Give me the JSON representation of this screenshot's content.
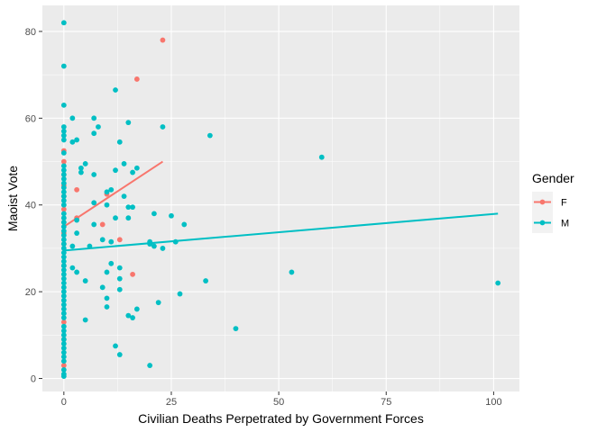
{
  "chart_data": {
    "type": "scatter",
    "title": "",
    "xlabel": "Civilian Deaths Perpetrated by Government Forces",
    "ylabel": "Maoist Vote",
    "xlim": [
      -5,
      106
    ],
    "ylim": [
      -3,
      86
    ],
    "x_ticks": [
      0,
      25,
      50,
      75,
      100
    ],
    "y_ticks": [
      0,
      20,
      40,
      60,
      80
    ],
    "x_tick_labels": [
      "0",
      "25",
      "50",
      "75",
      "100"
    ],
    "y_tick_labels": [
      "0",
      "20",
      "40",
      "60",
      "80"
    ],
    "grid": true,
    "legend": {
      "title": "Gender",
      "position": "right"
    },
    "series": [
      {
        "name": "F",
        "color": "#F8766D",
        "points": [
          [
            0,
            52.5
          ],
          [
            0,
            50
          ],
          [
            0,
            47
          ],
          [
            0,
            44.5
          ],
          [
            0,
            42
          ],
          [
            0,
            39
          ],
          [
            0,
            36
          ],
          [
            0,
            33.5
          ],
          [
            0,
            31
          ],
          [
            0,
            26
          ],
          [
            0,
            13
          ],
          [
            0,
            9
          ],
          [
            0,
            3
          ],
          [
            3,
            43.5
          ],
          [
            3,
            37
          ],
          [
            9,
            35.5
          ],
          [
            10,
            42.5
          ],
          [
            13,
            32
          ],
          [
            16,
            24
          ],
          [
            17,
            69
          ],
          [
            23,
            78
          ]
        ],
        "trend": [
          [
            0,
            35
          ],
          [
            23,
            50
          ]
        ]
      },
      {
        "name": "M",
        "color": "#00BFC4",
        "points": [
          [
            0,
            82
          ],
          [
            0,
            72
          ],
          [
            0,
            63
          ],
          [
            0,
            58
          ],
          [
            0,
            57
          ],
          [
            0,
            56
          ],
          [
            0,
            55
          ],
          [
            0,
            52
          ],
          [
            0,
            49
          ],
          [
            0,
            48
          ],
          [
            0,
            47
          ],
          [
            0,
            46
          ],
          [
            0,
            45
          ],
          [
            0,
            44
          ],
          [
            0,
            43
          ],
          [
            0,
            42
          ],
          [
            0,
            41
          ],
          [
            0,
            40
          ],
          [
            0,
            38
          ],
          [
            0,
            37
          ],
          [
            0,
            36
          ],
          [
            0,
            35
          ],
          [
            0,
            34
          ],
          [
            0,
            33
          ],
          [
            0,
            32
          ],
          [
            0,
            31
          ],
          [
            0,
            30
          ],
          [
            0,
            29
          ],
          [
            0,
            28
          ],
          [
            0,
            27
          ],
          [
            0,
            26
          ],
          [
            0,
            25
          ],
          [
            0,
            24
          ],
          [
            0,
            23
          ],
          [
            0,
            22
          ],
          [
            0,
            21
          ],
          [
            0,
            20
          ],
          [
            0,
            19
          ],
          [
            0,
            18
          ],
          [
            0,
            17
          ],
          [
            0,
            16
          ],
          [
            0,
            15
          ],
          [
            0,
            14
          ],
          [
            0,
            12
          ],
          [
            0,
            11
          ],
          [
            0,
            10
          ],
          [
            0,
            9
          ],
          [
            0,
            8
          ],
          [
            0,
            7
          ],
          [
            0,
            6
          ],
          [
            0,
            5
          ],
          [
            0,
            4
          ],
          [
            0,
            2
          ],
          [
            0,
            1
          ],
          [
            0,
            0.5
          ],
          [
            2,
            60
          ],
          [
            2,
            54.5
          ],
          [
            2,
            30.5
          ],
          [
            2,
            25.5
          ],
          [
            3,
            55
          ],
          [
            3,
            36.5
          ],
          [
            3,
            33.5
          ],
          [
            3,
            24.5
          ],
          [
            4,
            48.5
          ],
          [
            4,
            47.5
          ],
          [
            5,
            49.5
          ],
          [
            5,
            22.5
          ],
          [
            5,
            13.5
          ],
          [
            6,
            30.5
          ],
          [
            7,
            60
          ],
          [
            7,
            56.5
          ],
          [
            7,
            47
          ],
          [
            7,
            40.5
          ],
          [
            7,
            35.5
          ],
          [
            8,
            58
          ],
          [
            9,
            32
          ],
          [
            9,
            21
          ],
          [
            10,
            43
          ],
          [
            10,
            40
          ],
          [
            10,
            24.5
          ],
          [
            10,
            18.5
          ],
          [
            10,
            16.5
          ],
          [
            11,
            43.5
          ],
          [
            11,
            31.5
          ],
          [
            11,
            26.5
          ],
          [
            12,
            66.5
          ],
          [
            12,
            48
          ],
          [
            12,
            37
          ],
          [
            12,
            7.5
          ],
          [
            13,
            54.5
          ],
          [
            13,
            25.5
          ],
          [
            13,
            23
          ],
          [
            13,
            20.5
          ],
          [
            13,
            5.5
          ],
          [
            14,
            49.5
          ],
          [
            14,
            42
          ],
          [
            15,
            59
          ],
          [
            15,
            39.5
          ],
          [
            15,
            37
          ],
          [
            15,
            14.5
          ],
          [
            16,
            14
          ],
          [
            16,
            47.5
          ],
          [
            16,
            39.5
          ],
          [
            17,
            16
          ],
          [
            17,
            48.5
          ],
          [
            20,
            31.5
          ],
          [
            20,
            31
          ],
          [
            20,
            3
          ],
          [
            21,
            38
          ],
          [
            21,
            30.5
          ],
          [
            22,
            17.5
          ],
          [
            23,
            30
          ],
          [
            23,
            58
          ],
          [
            25,
            37.5
          ],
          [
            26,
            31.5
          ],
          [
            27,
            19.5
          ],
          [
            28,
            35.5
          ],
          [
            33,
            22.5
          ],
          [
            34,
            56
          ],
          [
            40,
            11.5
          ],
          [
            53,
            24.5
          ],
          [
            60,
            51
          ],
          [
            101,
            22
          ]
        ],
        "trend": [
          [
            0,
            29.5
          ],
          [
            101,
            38
          ]
        ]
      }
    ]
  }
}
